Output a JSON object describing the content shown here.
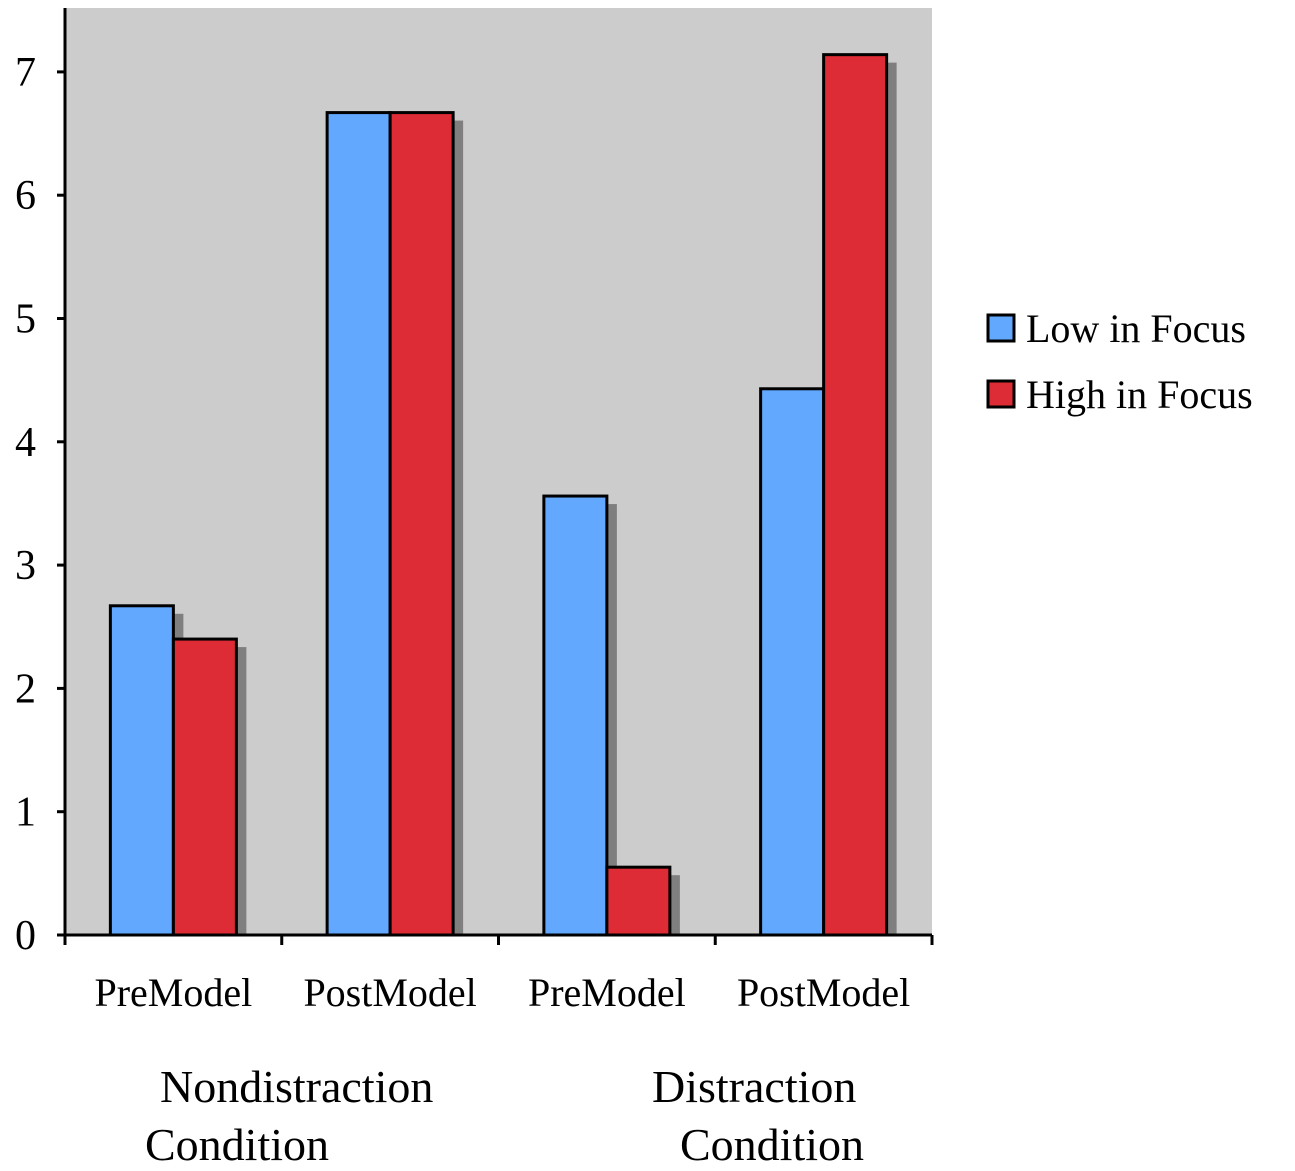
{
  "chart_data": {
    "type": "bar",
    "categories": [
      "PreModel",
      "PostModel",
      "PreModel",
      "PostModel"
    ],
    "groups": [
      {
        "line1": "Nondistraction",
        "line2": "Condition"
      },
      {
        "line1": "Distraction",
        "line2": "Condition"
      }
    ],
    "series": [
      {
        "name": "Low in Focus",
        "color": "#62a8ff",
        "values": [
          2.67,
          6.67,
          3.56,
          4.43
        ]
      },
      {
        "name": "High in Focus",
        "color": "#dd2c35",
        "values": [
          2.4,
          6.67,
          0.55,
          7.14
        ]
      }
    ],
    "ylim": [
      0,
      7.5
    ],
    "yticks": [
      "0",
      "1",
      "2",
      "3",
      "4",
      "5",
      "6",
      "7"
    ],
    "plot_background": "#cccccc",
    "legend_position": "right",
    "title": "",
    "xlabel": "",
    "ylabel": ""
  }
}
